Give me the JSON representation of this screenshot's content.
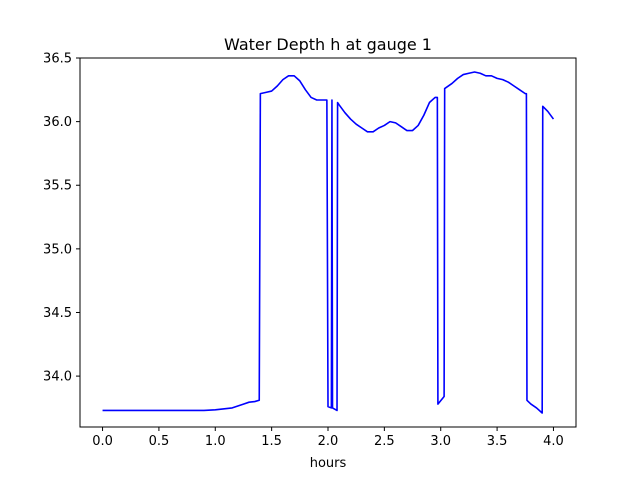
{
  "chart_data": {
    "type": "line",
    "title": "Water Depth h at gauge 1",
    "xlabel": "hours",
    "ylabel": "",
    "xlim": [
      -0.2,
      4.2
    ],
    "ylim": [
      33.6,
      36.5
    ],
    "xticks": [
      0.0,
      0.5,
      1.0,
      1.5,
      2.0,
      2.5,
      3.0,
      3.5,
      4.0
    ],
    "xtick_labels": [
      "0.0",
      "0.5",
      "1.0",
      "1.5",
      "2.0",
      "2.5",
      "3.0",
      "3.5",
      "4.0"
    ],
    "yticks": [
      34.0,
      34.5,
      35.0,
      35.5,
      36.0,
      36.5
    ],
    "ytick_labels": [
      "34.0",
      "34.5",
      "35.0",
      "35.5",
      "36.0",
      "36.5"
    ],
    "grid": false,
    "legend": "none",
    "line_color": "#0000ff",
    "series": [
      {
        "x": [
          0.0,
          0.2,
          0.4,
          0.6,
          0.8,
          0.9,
          1.0,
          1.05,
          1.1,
          1.15,
          1.2,
          1.25,
          1.3,
          1.35,
          1.39,
          1.4,
          1.45,
          1.5,
          1.55,
          1.6,
          1.65,
          1.7,
          1.75,
          1.8,
          1.85,
          1.9,
          1.95,
          1.99,
          2.0,
          2.03,
          2.035,
          2.04,
          2.08,
          2.085,
          2.1,
          2.15,
          2.2,
          2.25,
          2.3,
          2.35,
          2.4,
          2.45,
          2.5,
          2.55,
          2.6,
          2.65,
          2.7,
          2.75,
          2.8,
          2.85,
          2.9,
          2.95,
          2.97,
          2.975,
          3.03,
          3.035,
          3.1,
          3.15,
          3.2,
          3.25,
          3.3,
          3.35,
          3.4,
          3.45,
          3.5,
          3.55,
          3.6,
          3.65,
          3.7,
          3.75,
          3.76,
          3.765,
          3.8,
          3.85,
          3.9,
          3.905,
          3.95,
          4.0
        ],
        "y": [
          33.73,
          33.73,
          33.73,
          33.73,
          33.73,
          33.73,
          33.735,
          33.74,
          33.745,
          33.75,
          33.765,
          33.78,
          33.795,
          33.8,
          33.81,
          36.22,
          36.23,
          36.24,
          36.28,
          36.33,
          36.36,
          36.36,
          36.32,
          36.25,
          36.19,
          36.17,
          36.17,
          36.17,
          33.76,
          33.75,
          36.17,
          33.75,
          33.73,
          36.15,
          36.13,
          36.07,
          36.02,
          35.98,
          35.95,
          35.92,
          35.92,
          35.95,
          35.97,
          36.0,
          35.99,
          35.96,
          35.93,
          35.93,
          35.97,
          36.05,
          36.15,
          36.19,
          36.19,
          33.78,
          33.84,
          36.26,
          36.3,
          36.34,
          36.37,
          36.38,
          36.39,
          36.38,
          36.36,
          36.36,
          36.34,
          36.33,
          36.31,
          36.28,
          36.25,
          36.22,
          36.22,
          33.81,
          33.78,
          33.75,
          33.71,
          36.12,
          36.08,
          36.02
        ]
      }
    ]
  }
}
